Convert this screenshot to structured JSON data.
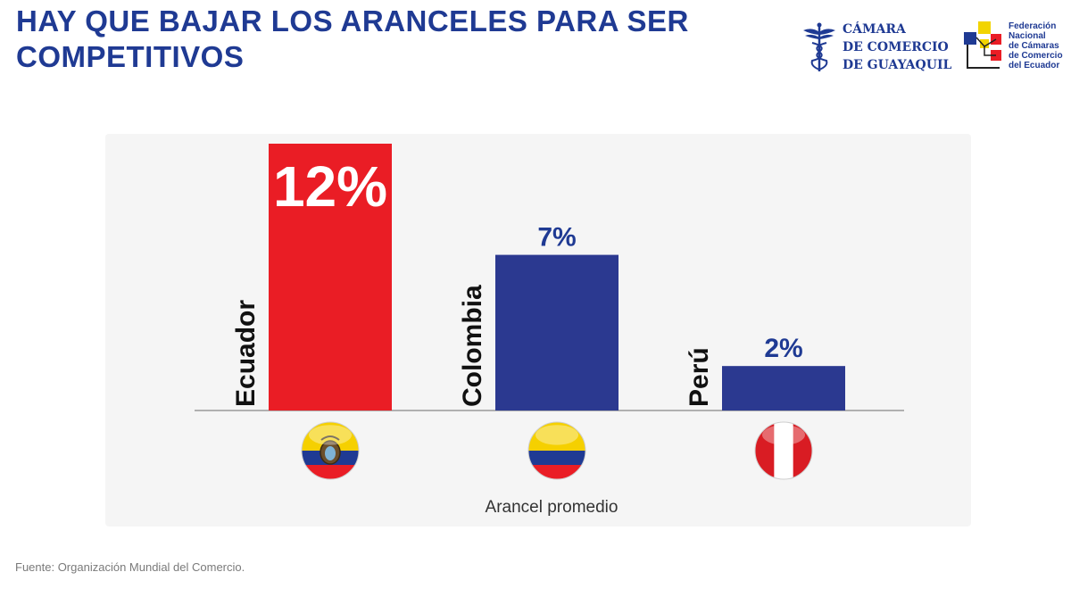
{
  "header": {
    "title": "HAY QUE BAJAR LOS ARANCELES PARA SER COMPETITIVOS"
  },
  "logos": {
    "camara": {
      "lines": [
        "CÁMARA",
        "DE COMERCIO",
        "DE GUAYAQUIL"
      ],
      "icon": "caduceus-icon",
      "color": "#1f3a93"
    },
    "federacion": {
      "lines": [
        "Federación",
        "Nacional",
        "de Cámaras",
        "de Comercio",
        "del Ecuador"
      ],
      "icon": "federation-squares-icon"
    }
  },
  "chart_data": {
    "type": "bar",
    "categories": [
      "Ecuador",
      "Colombia",
      "Perú"
    ],
    "values": [
      12,
      7,
      2
    ],
    "value_labels": [
      "12%",
      "7%",
      "2%"
    ],
    "colors": [
      "#ea1d25",
      "#2b3990",
      "#2b3990"
    ],
    "label_colors": [
      "#ffffff",
      "#1f3a93",
      "#1f3a93"
    ],
    "flags": [
      "flag-ecuador-icon",
      "flag-colombia-icon",
      "flag-peru-icon"
    ],
    "xlabel": "Arancel promedio",
    "ylabel": "",
    "ylim": [
      0,
      12
    ],
    "grid": false,
    "legend": "none"
  },
  "footer": {
    "source": "Fuente: Organización Mundial del Comercio."
  }
}
